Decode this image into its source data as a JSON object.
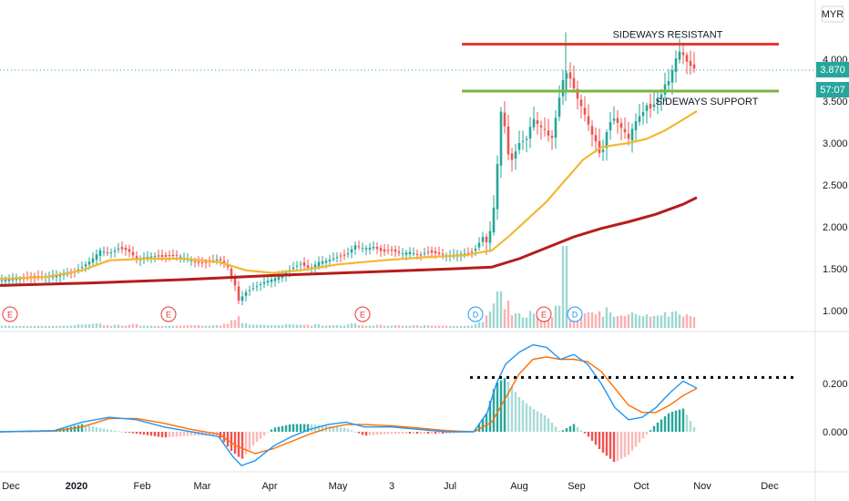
{
  "chart_data": [
    {
      "type": "candlestick",
      "currency": "MYR",
      "last_price": "3.870",
      "countdown": "57:07",
      "y_ticks": [
        "4.000",
        "3.500",
        "3.000",
        "2.500",
        "2.000",
        "1.500",
        "1.000"
      ],
      "ylim": [
        0.7,
        4.4
      ],
      "x_ticks": [
        "Dec",
        "2020",
        "Feb",
        "Mar",
        "Apr",
        "May",
        "3",
        "Jul",
        "Aug",
        "Sep",
        "Oct",
        "Nov",
        "Dec"
      ],
      "price_close": [
        [
          0,
          1.36
        ],
        [
          10,
          1.38
        ],
        [
          20,
          1.38
        ],
        [
          40,
          1.4
        ],
        [
          60,
          1.42
        ],
        [
          80,
          1.45
        ],
        [
          90,
          1.52
        ],
        [
          100,
          1.6
        ],
        [
          110,
          1.72
        ],
        [
          120,
          1.68
        ],
        [
          130,
          1.74
        ],
        [
          140,
          1.72
        ],
        [
          150,
          1.62
        ],
        [
          160,
          1.64
        ],
        [
          170,
          1.65
        ],
        [
          180,
          1.64
        ],
        [
          190,
          1.66
        ],
        [
          200,
          1.64
        ],
        [
          210,
          1.6
        ],
        [
          220,
          1.56
        ],
        [
          230,
          1.58
        ],
        [
          240,
          1.62
        ],
        [
          250,
          1.52
        ],
        [
          258,
          1.3
        ],
        [
          262,
          1.12
        ],
        [
          270,
          1.22
        ],
        [
          280,
          1.28
        ],
        [
          290,
          1.34
        ],
        [
          300,
          1.38
        ],
        [
          310,
          1.42
        ],
        [
          320,
          1.5
        ],
        [
          330,
          1.56
        ],
        [
          340,
          1.5
        ],
        [
          350,
          1.58
        ],
        [
          360,
          1.6
        ],
        [
          370,
          1.64
        ],
        [
          380,
          1.66
        ],
        [
          390,
          1.78
        ],
        [
          400,
          1.74
        ],
        [
          410,
          1.76
        ],
        [
          420,
          1.7
        ],
        [
          430,
          1.72
        ],
        [
          440,
          1.68
        ],
        [
          450,
          1.7
        ],
        [
          460,
          1.66
        ],
        [
          470,
          1.7
        ],
        [
          480,
          1.68
        ],
        [
          490,
          1.66
        ],
        [
          500,
          1.67
        ],
        [
          510,
          1.68
        ],
        [
          520,
          1.7
        ],
        [
          530,
          1.88
        ],
        [
          535,
          1.8
        ],
        [
          540,
          2.05
        ],
        [
          545,
          2.5
        ],
        [
          548,
          3.25
        ],
        [
          552,
          3.5
        ],
        [
          556,
          2.9
        ],
        [
          562,
          2.8
        ],
        [
          570,
          3.0
        ],
        [
          578,
          3.05
        ],
        [
          585,
          3.3
        ],
        [
          592,
          3.2
        ],
        [
          600,
          3.15
        ],
        [
          605,
          3.0
        ],
        [
          610,
          3.3
        ],
        [
          615,
          3.6
        ],
        [
          620,
          3.85
        ],
        [
          625,
          3.8
        ],
        [
          630,
          3.65
        ],
        [
          635,
          3.5
        ],
        [
          640,
          3.4
        ],
        [
          645,
          3.25
        ],
        [
          650,
          3.1
        ],
        [
          655,
          3.0
        ],
        [
          660,
          2.8
        ],
        [
          665,
          3.1
        ],
        [
          670,
          3.25
        ],
        [
          675,
          3.3
        ],
        [
          680,
          3.2
        ],
        [
          685,
          3.15
        ],
        [
          690,
          3.05
        ],
        [
          695,
          3.2
        ],
        [
          700,
          3.3
        ],
        [
          705,
          3.35
        ],
        [
          710,
          3.45
        ],
        [
          715,
          3.4
        ],
        [
          720,
          3.5
        ],
        [
          725,
          3.55
        ],
        [
          730,
          3.7
        ],
        [
          735,
          3.75
        ],
        [
          740,
          3.95
        ],
        [
          745,
          4.1
        ],
        [
          750,
          4.05
        ],
        [
          755,
          3.95
        ],
        [
          760,
          3.9
        ],
        [
          765,
          3.87
        ]
      ],
      "ma_50": [
        [
          0,
          1.38
        ],
        [
          50,
          1.4
        ],
        [
          90,
          1.48
        ],
        [
          120,
          1.6
        ],
        [
          160,
          1.62
        ],
        [
          200,
          1.62
        ],
        [
          240,
          1.58
        ],
        [
          270,
          1.48
        ],
        [
          300,
          1.45
        ],
        [
          330,
          1.48
        ],
        [
          370,
          1.55
        ],
        [
          420,
          1.6
        ],
        [
          470,
          1.64
        ],
        [
          510,
          1.66
        ],
        [
          540,
          1.72
        ],
        [
          560,
          1.9
        ],
        [
          580,
          2.1
        ],
        [
          600,
          2.3
        ],
        [
          620,
          2.55
        ],
        [
          640,
          2.8
        ],
        [
          660,
          2.95
        ],
        [
          690,
          3.0
        ],
        [
          710,
          3.05
        ],
        [
          730,
          3.15
        ],
        [
          750,
          3.28
        ],
        [
          765,
          3.38
        ]
      ],
      "ma_200": [
        [
          0,
          1.3
        ],
        [
          100,
          1.33
        ],
        [
          200,
          1.37
        ],
        [
          300,
          1.42
        ],
        [
          400,
          1.46
        ],
        [
          500,
          1.5
        ],
        [
          540,
          1.52
        ],
        [
          570,
          1.62
        ],
        [
          600,
          1.75
        ],
        [
          630,
          1.88
        ],
        [
          660,
          1.98
        ],
        [
          690,
          2.06
        ],
        [
          720,
          2.15
        ],
        [
          750,
          2.27
        ],
        [
          765,
          2.35
        ]
      ],
      "resistance": {
        "label": "SIDEWAYS RESISTANT",
        "value": 4.18,
        "x_range": [
          507,
          855
        ]
      },
      "support": {
        "label": "SIDEWAYS SUPPORT",
        "value": 3.62,
        "x_range": [
          507,
          855
        ]
      },
      "events": [
        {
          "label": "E",
          "x": 11,
          "type": "earnings"
        },
        {
          "label": "E",
          "x": 185,
          "type": "earnings"
        },
        {
          "label": "E",
          "x": 398,
          "type": "earnings"
        },
        {
          "label": "D",
          "x": 522,
          "type": "dividend"
        },
        {
          "label": "E",
          "x": 597,
          "type": "earnings"
        },
        {
          "label": "D",
          "x": 631,
          "type": "dividend"
        }
      ],
      "colors": {
        "ma_50": "#f4b731",
        "ma_200": "#b71c1c",
        "resistance": "#e53935",
        "support": "#7cb342",
        "up": "#26a69a",
        "down": "#ef5350",
        "accent": "#26a69a"
      }
    },
    {
      "type": "macd",
      "y_ticks": [
        "0.200",
        "0.000"
      ],
      "ylim": [
        -0.17,
        0.42
      ],
      "macd": [
        [
          0,
          0.0
        ],
        [
          60,
          0.005
        ],
        [
          90,
          0.04
        ],
        [
          120,
          0.06
        ],
        [
          150,
          0.05
        ],
        [
          180,
          0.02
        ],
        [
          210,
          0.0
        ],
        [
          240,
          -0.02
        ],
        [
          255,
          -0.1
        ],
        [
          265,
          -0.14
        ],
        [
          280,
          -0.12
        ],
        [
          300,
          -0.06
        ],
        [
          320,
          -0.02
        ],
        [
          340,
          0.01
        ],
        [
          360,
          0.03
        ],
        [
          380,
          0.04
        ],
        [
          400,
          0.02
        ],
        [
          430,
          0.02
        ],
        [
          460,
          0.01
        ],
        [
          490,
          0.0
        ],
        [
          520,
          0.0
        ],
        [
          535,
          0.08
        ],
        [
          545,
          0.2
        ],
        [
          555,
          0.28
        ],
        [
          570,
          0.33
        ],
        [
          585,
          0.36
        ],
        [
          600,
          0.35
        ],
        [
          615,
          0.3
        ],
        [
          630,
          0.32
        ],
        [
          645,
          0.28
        ],
        [
          660,
          0.2
        ],
        [
          675,
          0.1
        ],
        [
          690,
          0.05
        ],
        [
          705,
          0.06
        ],
        [
          720,
          0.1
        ],
        [
          735,
          0.16
        ],
        [
          750,
          0.21
        ],
        [
          765,
          0.18
        ]
      ],
      "signal": [
        [
          0,
          0.0
        ],
        [
          60,
          0.003
        ],
        [
          90,
          0.02
        ],
        [
          120,
          0.055
        ],
        [
          150,
          0.055
        ],
        [
          180,
          0.035
        ],
        [
          210,
          0.01
        ],
        [
          240,
          -0.01
        ],
        [
          260,
          -0.06
        ],
        [
          280,
          -0.09
        ],
        [
          300,
          -0.07
        ],
        [
          320,
          -0.04
        ],
        [
          340,
          -0.01
        ],
        [
          360,
          0.015
        ],
        [
          380,
          0.03
        ],
        [
          400,
          0.03
        ],
        [
          430,
          0.025
        ],
        [
          460,
          0.015
        ],
        [
          490,
          0.005
        ],
        [
          520,
          0.0
        ],
        [
          540,
          0.04
        ],
        [
          555,
          0.14
        ],
        [
          570,
          0.24
        ],
        [
          585,
          0.3
        ],
        [
          600,
          0.31
        ],
        [
          615,
          0.3
        ],
        [
          630,
          0.3
        ],
        [
          645,
          0.29
        ],
        [
          660,
          0.25
        ],
        [
          675,
          0.18
        ],
        [
          690,
          0.11
        ],
        [
          705,
          0.08
        ],
        [
          720,
          0.08
        ],
        [
          735,
          0.11
        ],
        [
          750,
          0.15
        ],
        [
          765,
          0.18
        ]
      ],
      "dotted_level": {
        "value": 0.225,
        "x_range": [
          516,
          872
        ]
      },
      "colors": {
        "macd": "#2196f3",
        "signal": "#ff6d00",
        "hist_up": "#26a69a",
        "hist_down": "#ef5350"
      }
    }
  ]
}
